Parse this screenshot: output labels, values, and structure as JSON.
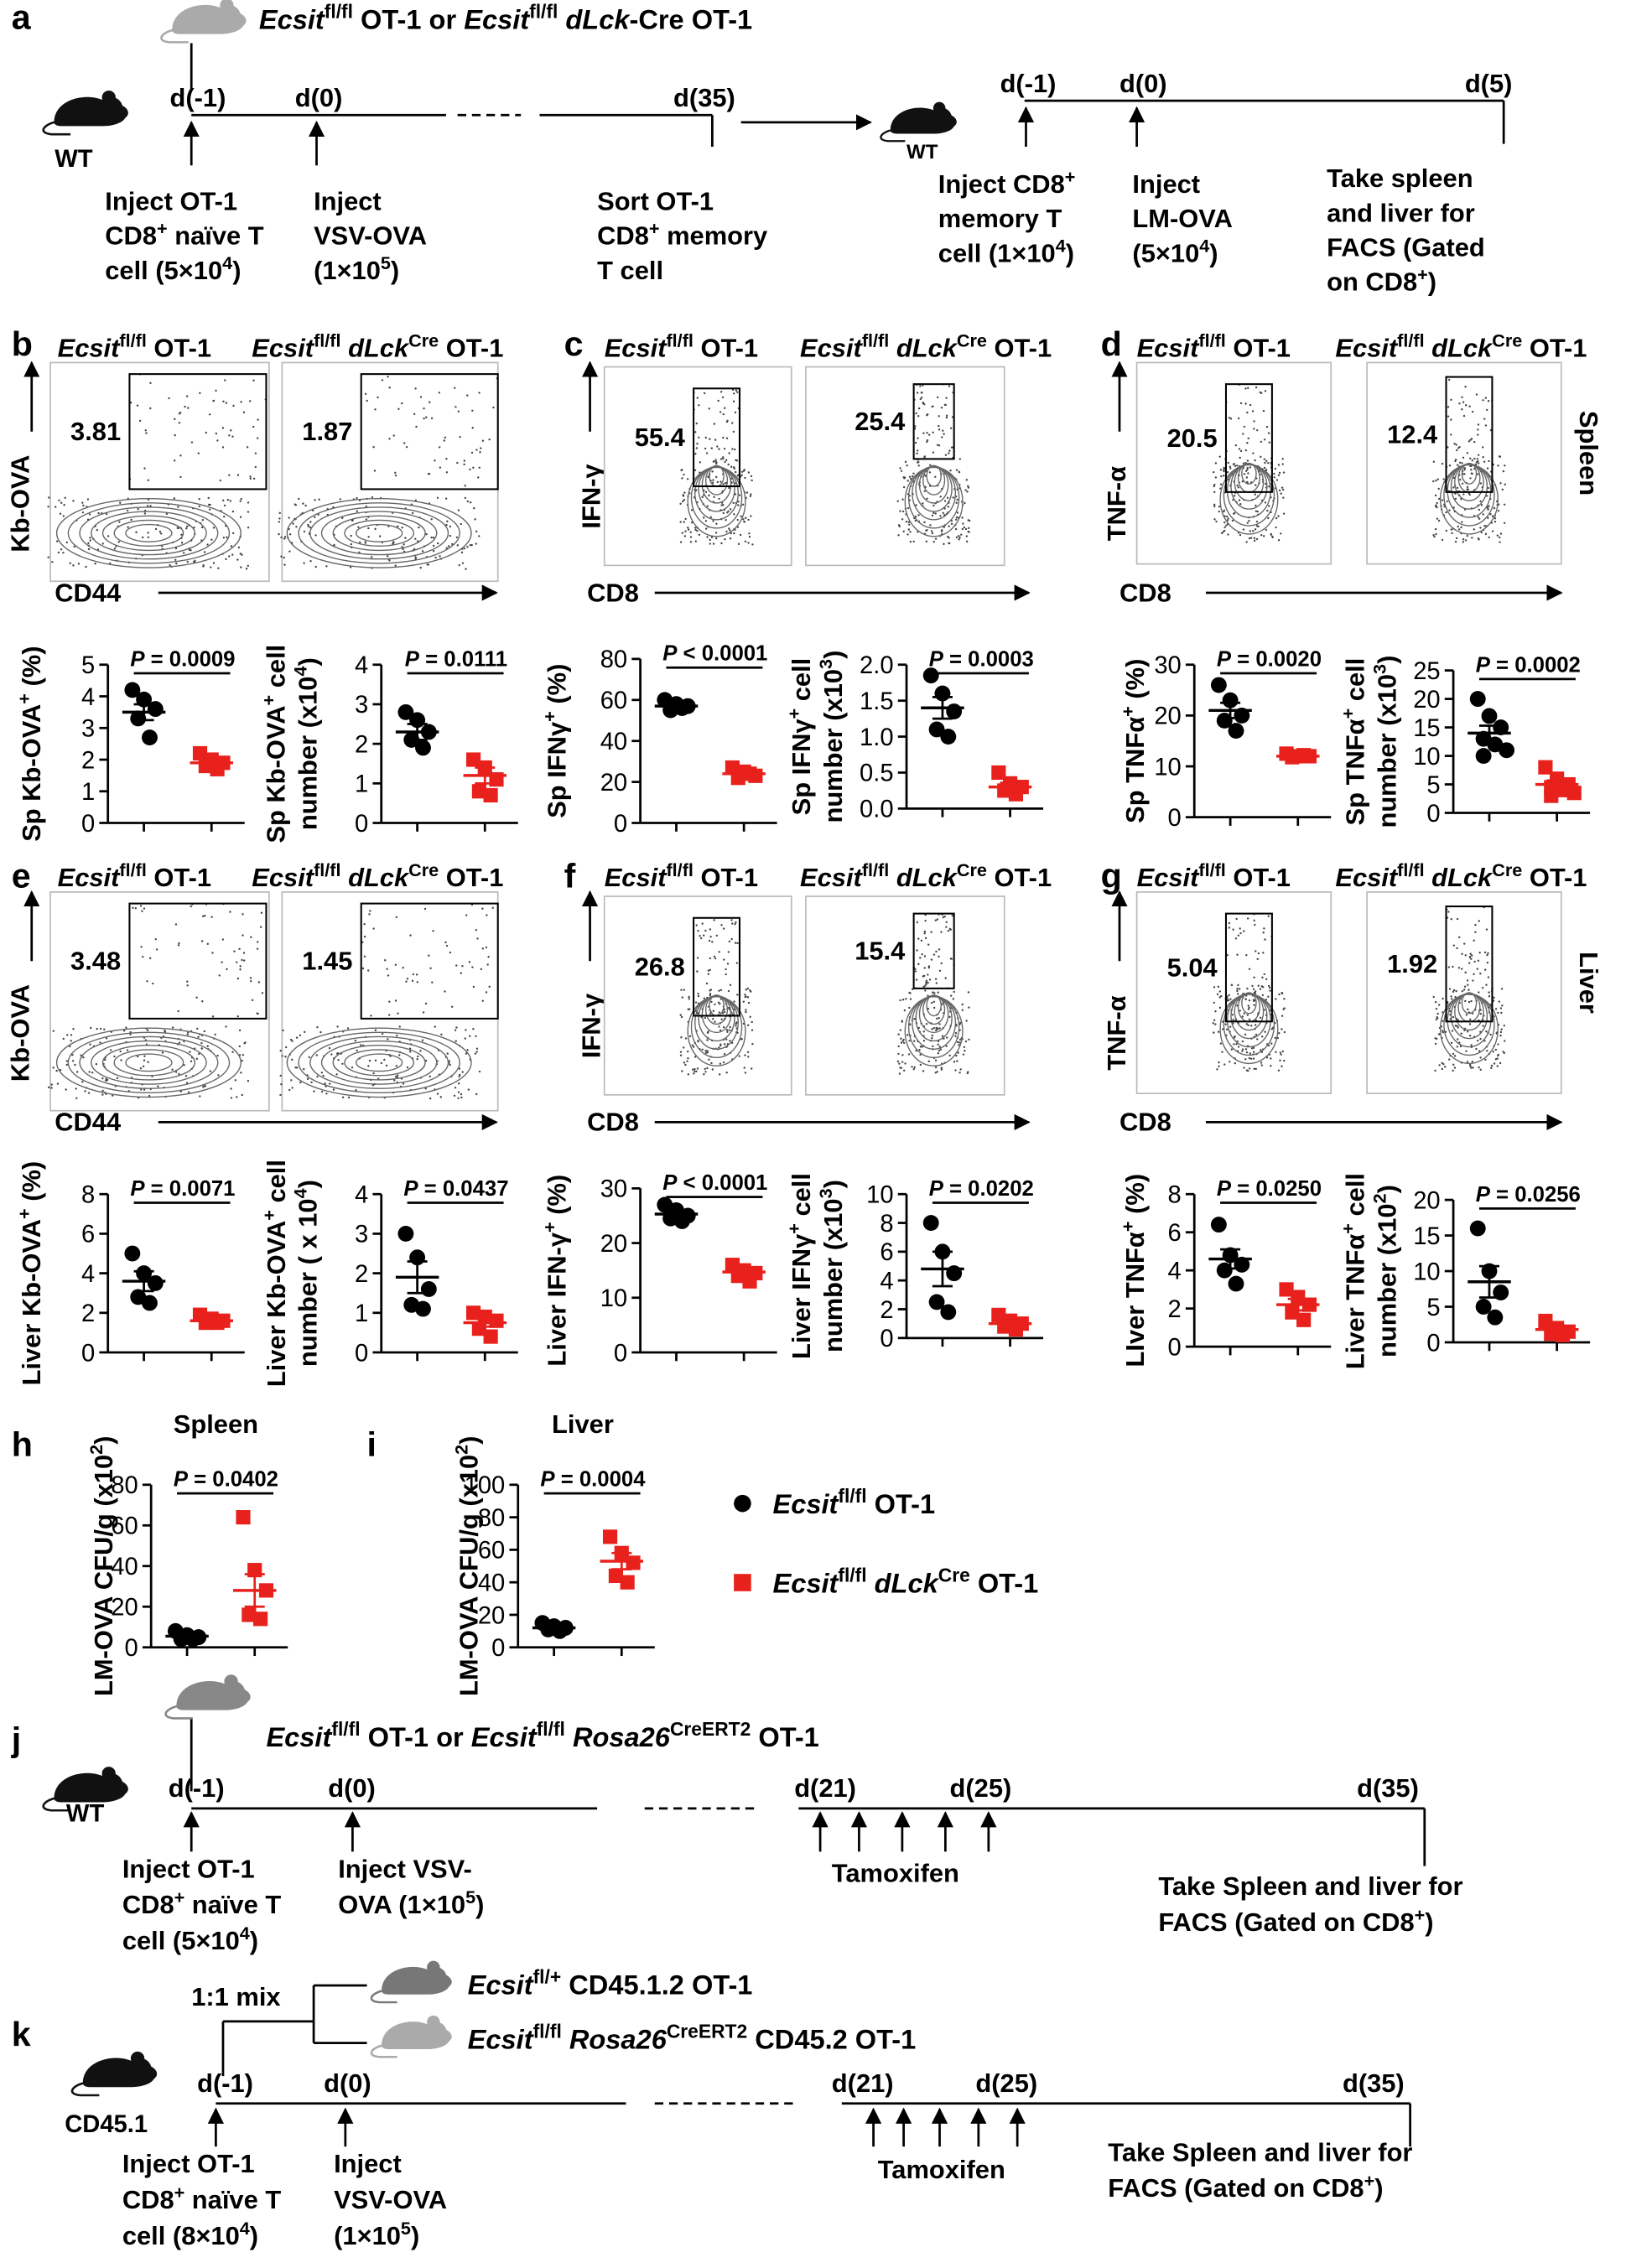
{
  "panel_labels": [
    "a",
    "b",
    "c",
    "d",
    "e",
    "f",
    "g",
    "h",
    "i",
    "j",
    "k"
  ],
  "genotypes": [
    [
      "Ecsit",
      "fl/fl",
      " OT-1"
    ],
    [
      "Ecsit",
      "fl/fl",
      " ",
      "dLck",
      "Cre",
      " OT-1"
    ]
  ],
  "a": {
    "title": [
      "Ecsit",
      "fl/fl",
      " OT-1 or ",
      "Ecsit",
      "fl/fl",
      " ",
      "dLck",
      "-Cre OT-1"
    ],
    "host": "WT",
    "days": [
      "d(-1)",
      "d(0)",
      "d(35)"
    ],
    "notes": [
      [
        [
          "Inject OT-1"
        ],
        [
          "CD8",
          "+",
          " naïve T"
        ],
        [
          "cell (5×10",
          "4",
          ")"
        ]
      ],
      [
        [
          "Inject"
        ],
        [
          "VSV-OVA"
        ],
        [
          "(1×10",
          "5",
          ")"
        ]
      ],
      [
        [
          "Sort OT-1"
        ],
        [
          "CD8",
          "+",
          " memory"
        ],
        [
          "T cell"
        ]
      ]
    ],
    "host2": "WT",
    "days2": [
      "d(-1)",
      "d(0)",
      "d(5)"
    ],
    "notes2": [
      [
        [
          "Inject CD8",
          "+"
        ],
        [
          "memory T"
        ],
        [
          "cell (1×10",
          "4",
          ")"
        ]
      ],
      [
        [
          "Inject"
        ],
        [
          "LM-OVA"
        ],
        [
          "(5×10",
          "4",
          ")"
        ]
      ],
      [
        [
          "Take spleen"
        ],
        [
          "and liver for"
        ],
        [
          "FACS (Gated"
        ],
        [
          "on CD8",
          "+",
          ")"
        ]
      ]
    ]
  },
  "flow": [
    {
      "y_label": "Kb-OVA",
      "x_label": "CD44",
      "gates": [
        3.81,
        1.87
      ]
    },
    {
      "y_label": "IFN-γ",
      "x_label": "CD8",
      "gates": [
        55.4,
        25.4
      ]
    },
    {
      "y_label": "TNF-α",
      "x_label": "CD8",
      "gates": [
        20.5,
        12.4
      ],
      "tissue": "Spleen"
    },
    {
      "y_label": "Kb-OVA",
      "x_label": "CD44",
      "gates": [
        3.48,
        1.45
      ]
    },
    {
      "y_label": "IFN-γ",
      "x_label": "CD8",
      "gates": [
        26.8,
        15.4
      ]
    },
    {
      "y_label": "TNF-α",
      "x_label": "CD8",
      "gates": [
        5.04,
        1.92
      ],
      "tissue": "Liver"
    }
  ],
  "chart_data": [
    {
      "type": "dot",
      "y_label": [
        [
          "Sp Kb-OVA",
          "+",
          " (%)"
        ]
      ],
      "ylim": [
        0,
        5
      ],
      "yticks": [
        0,
        1,
        2,
        3,
        4,
        5
      ],
      "p_label": [
        "P",
        " = 0.0009"
      ],
      "series": [
        {
          "color": "#000000",
          "values": [
            4.2,
            3.9,
            3.6,
            3.3,
            2.7
          ],
          "mean": 3.5,
          "sem": 0.25
        },
        {
          "color": "#e8211c",
          "values": [
            2.2,
            2.0,
            1.9,
            1.8,
            1.7
          ],
          "mean": 1.9,
          "sem": 0.1
        }
      ]
    },
    {
      "type": "dot",
      "y_label": [
        [
          "Sp Kb-OVA",
          "+",
          " cell"
        ],
        [
          "number (x10",
          "4",
          ")"
        ]
      ],
      "ylim": [
        0,
        4
      ],
      "yticks": [
        0,
        1,
        2,
        3,
        4
      ],
      "p_label": [
        "P",
        " = 0.0111"
      ],
      "series": [
        {
          "color": "#000000",
          "values": [
            2.8,
            2.6,
            2.3,
            2.1,
            1.9
          ],
          "mean": 2.3,
          "sem": 0.2
        },
        {
          "color": "#e8211c",
          "values": [
            1.6,
            1.4,
            1.1,
            0.8,
            0.7
          ],
          "mean": 1.2,
          "sem": 0.2
        }
      ]
    },
    {
      "type": "dot",
      "y_label": [
        [
          "Sp IFNγ",
          "+",
          " (%)"
        ]
      ],
      "ylim": [
        0,
        80
      ],
      "yticks": [
        0,
        20,
        40,
        60,
        80
      ],
      "p_label": [
        "P",
        " < 0.0001"
      ],
      "series": [
        {
          "color": "#000000",
          "values": [
            60,
            58,
            57,
            55,
            56
          ],
          "mean": 57,
          "sem": 1
        },
        {
          "color": "#e8211c",
          "values": [
            27,
            25,
            23,
            22,
            24
          ],
          "mean": 24,
          "sem": 1
        }
      ]
    },
    {
      "type": "dot",
      "y_label": [
        [
          "Sp IFNγ",
          "+",
          " cell"
        ],
        [
          "number (x10",
          "3",
          ")"
        ]
      ],
      "ylim": [
        0,
        2
      ],
      "yticks": [
        {
          "value": 0,
          "label": "0.0"
        },
        0.5,
        {
          "value": 1,
          "label": "1.0"
        },
        1.5,
        {
          "value": 2,
          "label": "2.0"
        }
      ],
      "p_label": [
        "P",
        " = 0.0003"
      ],
      "series": [
        {
          "color": "#000000",
          "values": [
            1.85,
            1.6,
            1.35,
            1.1,
            1.0
          ],
          "mean": 1.4,
          "sem": 0.15
        },
        {
          "color": "#e8211c",
          "values": [
            0.5,
            0.35,
            0.3,
            0.25,
            0.2
          ],
          "mean": 0.3,
          "sem": 0.06
        }
      ]
    },
    {
      "type": "dot",
      "y_label": [
        [
          "Sp TNFα",
          "+",
          " (%)"
        ]
      ],
      "ylim": [
        0,
        30
      ],
      "yticks": [
        0,
        10,
        20,
        30
      ],
      "p_label": [
        "P",
        " = 0.0020"
      ],
      "series": [
        {
          "color": "#000000",
          "values": [
            26,
            23,
            20,
            19,
            17
          ],
          "mean": 21,
          "sem": 1.5
        },
        {
          "color": "#e8211c",
          "values": [
            12.5,
            12,
            12,
            11.8,
            12.2
          ],
          "mean": 12,
          "sem": 0.2
        }
      ]
    },
    {
      "type": "dot",
      "y_label": [
        [
          "Sp TNFα",
          "+",
          " cell"
        ],
        [
          "number (x10",
          "3",
          ")"
        ]
      ],
      "ylim": [
        0,
        25
      ],
      "yticks": [
        0,
        5,
        10,
        15,
        20,
        25
      ],
      "p_label": [
        "P",
        " = 0.0002"
      ],
      "series": [
        {
          "color": "#000000",
          "values": [
            20,
            17,
            15,
            13,
            12,
            11,
            10
          ],
          "mean": 14,
          "sem": 1.3
        },
        {
          "color": "#e8211c",
          "values": [
            8,
            6,
            5,
            4.5,
            4,
            3.5,
            3
          ],
          "mean": 5,
          "sem": 0.7
        }
      ]
    },
    {
      "type": "dot",
      "y_label": [
        [
          "Liver Kb-OVA",
          "+",
          " (%)"
        ]
      ],
      "ylim": [
        0,
        8
      ],
      "yticks": [
        0,
        2,
        4,
        6,
        8
      ],
      "p_label": [
        "P",
        " = 0.0071"
      ],
      "series": [
        {
          "color": "#000000",
          "values": [
            5.0,
            4.0,
            3.5,
            2.8,
            2.5
          ],
          "mean": 3.6,
          "sem": 0.5
        },
        {
          "color": "#e8211c",
          "values": [
            1.9,
            1.7,
            1.6,
            1.5,
            1.5
          ],
          "mean": 1.6,
          "sem": 0.1
        }
      ]
    },
    {
      "type": "dot",
      "y_label": [
        [
          "Liver Kb-OVA",
          "+",
          " cell"
        ],
        [
          "number ( x 10",
          "4",
          ")"
        ]
      ],
      "ylim": [
        0,
        4
      ],
      "yticks": [
        0,
        1,
        2,
        3,
        4
      ],
      "p_label": [
        "P",
        " = 0.0437"
      ],
      "series": [
        {
          "color": "#000000",
          "values": [
            3.0,
            2.4,
            1.6,
            1.2,
            1.1
          ],
          "mean": 1.9,
          "sem": 0.4
        },
        {
          "color": "#e8211c",
          "values": [
            1.0,
            0.9,
            0.8,
            0.6,
            0.4
          ],
          "mean": 0.75,
          "sem": 0.1
        }
      ]
    },
    {
      "type": "dot",
      "y_label": [
        [
          "Liver IFN-γ",
          "+",
          " (%)"
        ]
      ],
      "ylim": [
        0,
        30
      ],
      "yticks": [
        0,
        10,
        20,
        30
      ],
      "p_label": [
        "P",
        " < 0.0001"
      ],
      "series": [
        {
          "color": "#000000",
          "values": [
            27,
            26,
            25,
            24.5,
            24
          ],
          "mean": 25.3,
          "sem": 0.5
        },
        {
          "color": "#e8211c",
          "values": [
            16,
            15,
            14.5,
            14,
            13
          ],
          "mean": 14.7,
          "sem": 0.5
        }
      ]
    },
    {
      "type": "dot",
      "y_label": [
        [
          "Liver IFNγ",
          "+",
          " cell"
        ],
        [
          "number (x10",
          "3",
          ")"
        ]
      ],
      "ylim": [
        0,
        10
      ],
      "yticks": [
        0,
        2,
        4,
        6,
        8,
        10
      ],
      "p_label": [
        "P",
        " = 0.0202"
      ],
      "series": [
        {
          "color": "#000000",
          "values": [
            8,
            6,
            4.5,
            2.5,
            1.8
          ],
          "mean": 4.8,
          "sem": 1.2
        },
        {
          "color": "#e8211c",
          "values": [
            1.6,
            1.2,
            1.0,
            0.8,
            0.6
          ],
          "mean": 1.0,
          "sem": 0.2
        }
      ]
    },
    {
      "type": "dot",
      "y_label": [
        [
          "LIver TNFα",
          "+",
          " (%)"
        ]
      ],
      "ylim": [
        0,
        8
      ],
      "yticks": [
        0,
        2,
        4,
        6,
        8
      ],
      "p_label": [
        "P",
        " = 0.0250"
      ],
      "series": [
        {
          "color": "#000000",
          "values": [
            6.4,
            4.8,
            4.3,
            4.0,
            3.3
          ],
          "mean": 4.6,
          "sem": 0.5
        },
        {
          "color": "#e8211c",
          "values": [
            3.0,
            2.6,
            2.2,
            1.8,
            1.4
          ],
          "mean": 2.2,
          "sem": 0.3
        }
      ]
    },
    {
      "type": "dot",
      "y_label": [
        [
          "Liver TNFα",
          "+",
          " cell"
        ],
        [
          "number (x10",
          "2",
          ")"
        ]
      ],
      "ylim": [
        0,
        20
      ],
      "yticks": [
        0,
        5,
        10,
        15,
        20
      ],
      "p_label": [
        "P",
        " = 0.0256"
      ],
      "series": [
        {
          "color": "#000000",
          "values": [
            16,
            10,
            7,
            5,
            3.5
          ],
          "mean": 8.5,
          "sem": 2.2
        },
        {
          "color": "#e8211c",
          "values": [
            3,
            2,
            1.5,
            1.2,
            1
          ],
          "mean": 1.8,
          "sem": 0.4
        }
      ]
    },
    {
      "type": "dot",
      "title": "Spleen",
      "y_label": [
        [
          "LM-OVA CFU/g (x10",
          "2",
          ")"
        ]
      ],
      "ylim": [
        0,
        80
      ],
      "yticks": [
        0,
        20,
        40,
        60,
        80
      ],
      "p_label": [
        "P",
        " = 0.0402"
      ],
      "series": [
        {
          "color": "#000000",
          "values": [
            8,
            6,
            5,
            4,
            4
          ],
          "mean": 5.5,
          "sem": 0.8
        },
        {
          "color": "#e8211c",
          "values": [
            64,
            38,
            28,
            16,
            14
          ],
          "mean": 28,
          "sem": 8
        }
      ]
    },
    {
      "type": "dot",
      "title": "Liver",
      "y_label": [
        [
          "LM-OVA CFU/g (x10",
          "2",
          ")"
        ]
      ],
      "ylim": [
        0,
        100
      ],
      "yticks": [
        0,
        20,
        40,
        60,
        80,
        100
      ],
      "p_label": [
        "P",
        " = 0.0004"
      ],
      "series": [
        {
          "color": "#000000",
          "values": [
            15,
            13,
            12,
            11,
            10
          ],
          "mean": 12,
          "sem": 1
        },
        {
          "color": "#e8211c",
          "values": [
            68,
            58,
            52,
            44,
            40
          ],
          "mean": 53,
          "sem": 5
        }
      ]
    }
  ],
  "legend": {
    "colors": [
      "#000000",
      "#e8211c"
    ]
  },
  "j": {
    "title": [
      "Ecsit",
      "fl/fl",
      " OT-1 or ",
      "Ecsit",
      "fl/fl",
      " ",
      "Rosa26",
      "CreERT2",
      " OT-1"
    ],
    "host": "WT",
    "days": [
      "d(-1)",
      "d(0)",
      "d(21)",
      "d(25)",
      "d(35)"
    ],
    "notes": [
      [
        [
          "Inject OT-1"
        ],
        [
          "CD8",
          "+",
          " naïve T"
        ],
        [
          "cell (5×10",
          "4",
          ")"
        ]
      ],
      [
        [
          "Inject VSV-"
        ],
        [
          "OVA (1×10",
          "5",
          ")"
        ]
      ],
      [
        [
          "Tamoxifen"
        ]
      ],
      [
        [
          "Take Spleen and liver for"
        ],
        [
          "FACS (Gated on CD8",
          "+",
          ")"
        ]
      ]
    ]
  },
  "k": {
    "mix": "1:1 mix",
    "donors": [
      [
        "Ecsit",
        "fl/+",
        " CD45.1.2 OT-1"
      ],
      [
        "Ecsit",
        "fl/fl",
        " ",
        "Rosa26",
        "CreERT2",
        " CD45.2 OT-1"
      ]
    ],
    "host": "CD45.1",
    "days": [
      "d(-1)",
      "d(0)",
      "d(21)",
      "d(25)",
      "d(35)"
    ],
    "notes": [
      [
        [
          "Inject OT-1"
        ],
        [
          "CD8",
          "+",
          " naïve T"
        ],
        [
          "cell (8×10",
          "4",
          ")"
        ]
      ],
      [
        [
          "Inject"
        ],
        [
          "VSV-OVA"
        ],
        [
          "(1×10",
          "5",
          ")"
        ]
      ],
      [
        [
          "Tamoxifen"
        ]
      ],
      [
        [
          "Take Spleen and liver for"
        ],
        [
          "FACS (Gated on CD8",
          "+",
          ")"
        ]
      ]
    ]
  }
}
